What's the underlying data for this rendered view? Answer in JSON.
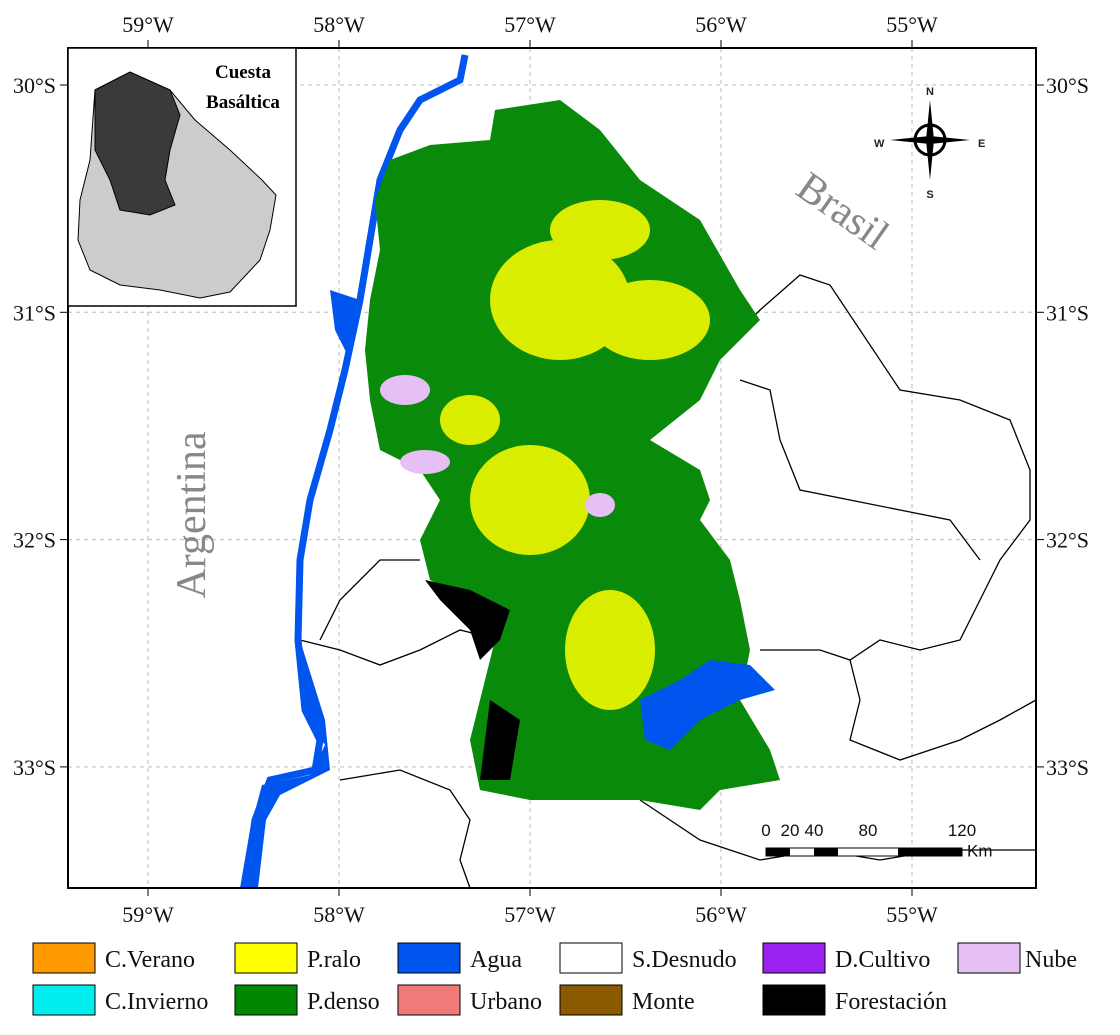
{
  "map": {
    "longitude_labels": [
      "59°W",
      "58°W",
      "57°W",
      "56°W",
      "55°W"
    ],
    "latitude_labels": [
      "30°S",
      "31°S",
      "32°S",
      "33°S"
    ],
    "inset": {
      "title_lines": [
        "Cuesta",
        "Basáltica"
      ]
    },
    "countries": {
      "brasil": "Brasil",
      "argentina": "Argentina"
    },
    "compass": {
      "north": "N",
      "south": "S",
      "east": "E",
      "west": "W"
    },
    "scale_bar": {
      "ticks": [
        "0",
        "20",
        "40",
        "80",
        "120"
      ],
      "unit": "Km"
    }
  },
  "legend": [
    {
      "label": "C.Verano",
      "color": "#ff9900"
    },
    {
      "label": "P.ralo",
      "color": "#ffff00"
    },
    {
      "label": "Agua",
      "color": "#0055ee"
    },
    {
      "label": "S.Desnudo",
      "color": "#ffffff"
    },
    {
      "label": "D.Cultivo",
      "color": "#9922ee"
    },
    {
      "label": "Nube",
      "color": "#e6c0f5"
    },
    {
      "label": "C.Invierno",
      "color": "#00eeee"
    },
    {
      "label": "P.denso",
      "color": "#008800"
    },
    {
      "label": "Urbano",
      "color": "#f07a7a"
    },
    {
      "label": "Monte",
      "color": "#8b5a00"
    },
    {
      "label": "Forestación",
      "color": "#000000"
    }
  ]
}
